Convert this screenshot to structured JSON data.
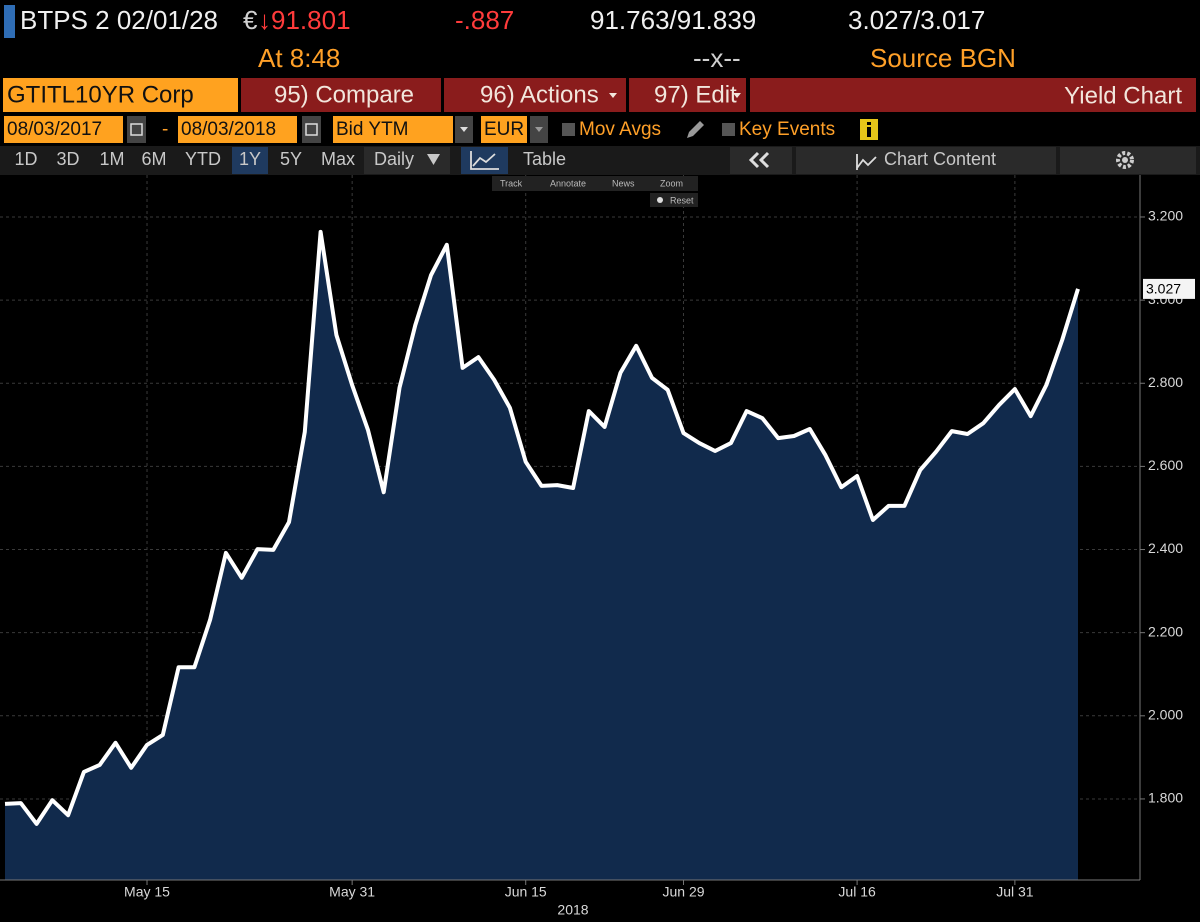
{
  "header": {
    "security": "BTPS 2 02/01/28",
    "currency_symbol": "€",
    "price": "↓91.801",
    "change": "-.887",
    "bid_ask": "91.763/91.839",
    "yields": "3.027/3.017",
    "time": "At 8:48",
    "size": "--x--",
    "source": "Source BGN"
  },
  "toolbar": {
    "ticker": "GTITL10YR Corp",
    "buttons": [
      "95) Compare",
      "96) Actions",
      "97) Edit"
    ],
    "function_title": "Yield Chart"
  },
  "controls": {
    "start_date": "08/03/2017",
    "date_separator": "-",
    "end_date": "08/03/2018",
    "field": "Bid YTM",
    "currency": "EUR",
    "options": [
      "Mov Avgs",
      "Key Events"
    ]
  },
  "tabs": {
    "periods": [
      "1D",
      "3D",
      "1M",
      "6M",
      "YTD",
      "1Y",
      "5Y",
      "Max"
    ],
    "selected_period": "1Y",
    "frequency": "Daily",
    "view": "Table",
    "chart_content": "Chart Content"
  },
  "chart_tools": [
    "Track",
    "Annotate",
    "News",
    "Zoom",
    "Reset"
  ],
  "chart_data": {
    "type": "area",
    "x_label": "2018",
    "categories": [
      null,
      null,
      null,
      null,
      null,
      null,
      null,
      null,
      null,
      "May 15",
      null,
      null,
      null,
      null,
      null,
      null,
      null,
      null,
      null,
      null,
      null,
      null,
      "May 31",
      null,
      null,
      null,
      null,
      null,
      null,
      null,
      null,
      null,
      null,
      "Jun 15",
      null,
      null,
      null,
      null,
      null,
      null,
      null,
      null,
      null,
      "Jun 29",
      null,
      null,
      null,
      null,
      null,
      null,
      null,
      null,
      null,
      null,
      "Jul 16",
      null,
      null,
      null,
      null,
      null,
      null,
      null,
      null,
      null,
      "Jul 31",
      null,
      null,
      null,
      null
    ],
    "values": [
      1.788,
      1.79,
      1.74,
      1.797,
      1.761,
      1.865,
      1.882,
      1.935,
      1.875,
      1.93,
      1.954,
      2.117,
      2.117,
      2.231,
      2.392,
      2.332,
      2.401,
      2.399,
      2.466,
      2.683,
      3.164,
      2.916,
      2.796,
      2.688,
      2.538,
      2.789,
      2.94,
      3.06,
      3.133,
      2.837,
      2.863,
      2.808,
      2.741,
      2.611,
      2.553,
      2.555,
      2.548,
      2.733,
      2.695,
      2.825,
      2.89,
      2.813,
      2.784,
      2.68,
      2.656,
      2.637,
      2.656,
      2.733,
      2.716,
      2.668,
      2.673,
      2.69,
      2.627,
      2.55,
      2.577,
      2.471,
      2.505,
      2.505,
      2.591,
      2.635,
      2.685,
      2.678,
      2.704,
      2.748,
      2.786,
      2.721,
      2.796,
      2.904,
      3.027
    ],
    "last_value_tag": "3.027",
    "line_color": "#ffffff",
    "fill_color": "#112a4c",
    "ylim": [
      1.605,
      3.301
    ],
    "yticks": [
      {
        "value": 1.8,
        "label": "1.800"
      },
      {
        "value": 2.0,
        "label": "2.000"
      },
      {
        "value": 2.2,
        "label": "2.200"
      },
      {
        "value": 2.4,
        "label": "2.400"
      },
      {
        "value": 2.6,
        "label": "2.600"
      },
      {
        "value": 2.8,
        "label": "2.800"
      },
      {
        "value": 3.0,
        "label": "3.000"
      },
      {
        "value": 3.2,
        "label": "3.200"
      }
    ],
    "grid": true
  }
}
